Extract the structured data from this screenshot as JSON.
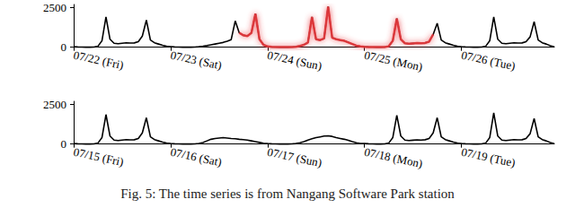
{
  "caption": "Fig. 5: The time series is from Nangang Software Park station",
  "chart_data": [
    {
      "type": "line",
      "marker": "none",
      "grid": false,
      "ylim": [
        -130,
        2680
      ],
      "yticks": [
        0,
        2500
      ],
      "categories": [
        "07/22 (Fri)",
        null,
        null,
        null,
        null,
        null,
        null,
        null,
        null,
        null,
        null,
        null,
        null,
        null,
        null,
        null,
        null,
        null,
        null,
        null,
        null,
        null,
        null,
        null,
        "07/23 (Sat)",
        null,
        null,
        null,
        null,
        null,
        null,
        null,
        null,
        null,
        null,
        null,
        null,
        null,
        null,
        null,
        null,
        null,
        null,
        null,
        null,
        null,
        null,
        null,
        "07/24 (Sun)",
        null,
        null,
        null,
        null,
        null,
        null,
        null,
        null,
        null,
        null,
        null,
        null,
        null,
        null,
        null,
        null,
        null,
        null,
        null,
        null,
        null,
        null,
        null,
        "07/25 (Mon)",
        null,
        null,
        null,
        null,
        null,
        null,
        null,
        null,
        null,
        null,
        null,
        null,
        null,
        null,
        null,
        null,
        null,
        null,
        null,
        null,
        null,
        null,
        null,
        "07/26 (Tue)",
        null,
        null,
        null,
        null,
        null,
        null,
        null,
        null,
        null,
        null,
        null,
        null,
        null,
        null,
        null,
        null,
        null,
        null,
        null,
        null,
        null,
        null,
        null
      ],
      "series": [
        {
          "color": "#000000",
          "values": [
            30,
            15,
            10,
            5,
            5,
            10,
            60,
            400,
            1900,
            500,
            250,
            220,
            250,
            280,
            260,
            270,
            350,
            700,
            1700,
            450,
            280,
            200,
            120,
            60,
            40,
            20,
            10,
            5,
            5,
            5,
            10,
            30,
            60,
            100,
            150,
            200,
            250,
            300,
            380,
            480,
            1650,
            900,
            750,
            700,
            900,
            2100,
            500,
            150,
            50,
            20,
            10,
            5,
            5,
            5,
            10,
            30,
            80,
            150,
            300,
            1900,
            500,
            450,
            550,
            2550,
            600,
            500,
            450,
            400,
            300,
            200,
            100,
            50,
            30,
            15,
            10,
            5,
            5,
            10,
            60,
            400,
            1800,
            500,
            250,
            220,
            240,
            260,
            250,
            270,
            350,
            800,
            1500,
            450,
            280,
            200,
            120,
            60,
            30,
            15,
            10,
            5,
            5,
            10,
            60,
            400,
            1900,
            500,
            250,
            220,
            250,
            280,
            260,
            270,
            350,
            650,
            1600,
            450,
            280,
            200,
            100,
            20
          ]
        },
        {
          "color": "#e8383d",
          "values": [
            null,
            null,
            null,
            null,
            null,
            null,
            null,
            null,
            null,
            null,
            null,
            null,
            null,
            null,
            null,
            null,
            null,
            null,
            null,
            null,
            null,
            null,
            null,
            null,
            null,
            null,
            null,
            null,
            null,
            null,
            null,
            null,
            null,
            null,
            null,
            null,
            null,
            null,
            null,
            null,
            null,
            900,
            750,
            700,
            900,
            2100,
            500,
            150,
            50,
            20,
            10,
            5,
            5,
            5,
            10,
            30,
            80,
            150,
            300,
            1900,
            500,
            450,
            550,
            2550,
            600,
            500,
            450,
            400,
            300,
            200,
            100,
            50,
            30,
            15,
            10,
            5,
            5,
            10,
            60,
            400,
            1800,
            500,
            250,
            220,
            240,
            260,
            250,
            270,
            350,
            800,
            null,
            null,
            null,
            null,
            null,
            null,
            null,
            null,
            null,
            null,
            null,
            null,
            null,
            null,
            null,
            null,
            null,
            null,
            null,
            null,
            null,
            null,
            null,
            null,
            null,
            null,
            null,
            null,
            null,
            null
          ]
        }
      ]
    },
    {
      "type": "line",
      "marker": "none",
      "grid": false,
      "ylim": [
        -130,
        2680
      ],
      "yticks": [
        0,
        2500
      ],
      "categories": [
        "07/15 (Fri)",
        null,
        null,
        null,
        null,
        null,
        null,
        null,
        null,
        null,
        null,
        null,
        null,
        null,
        null,
        null,
        null,
        null,
        null,
        null,
        null,
        null,
        null,
        null,
        "07/16 (Sat)",
        null,
        null,
        null,
        null,
        null,
        null,
        null,
        null,
        null,
        null,
        null,
        null,
        null,
        null,
        null,
        null,
        null,
        null,
        null,
        null,
        null,
        null,
        null,
        "07/17 (Sun)",
        null,
        null,
        null,
        null,
        null,
        null,
        null,
        null,
        null,
        null,
        null,
        null,
        null,
        null,
        null,
        null,
        null,
        null,
        null,
        null,
        null,
        null,
        null,
        "07/18 (Mon)",
        null,
        null,
        null,
        null,
        null,
        null,
        null,
        null,
        null,
        null,
        null,
        null,
        null,
        null,
        null,
        null,
        null,
        null,
        null,
        null,
        null,
        null,
        null,
        "07/19 (Tue)",
        null,
        null,
        null,
        null,
        null,
        null,
        null,
        null,
        null,
        null,
        null,
        null,
        null,
        null,
        null,
        null,
        null,
        null,
        null,
        null,
        null,
        null,
        null
      ],
      "series": [
        {
          "color": "#000000",
          "values": [
            30,
            15,
            10,
            5,
            5,
            10,
            60,
            400,
            1850,
            500,
            250,
            220,
            250,
            280,
            260,
            270,
            350,
            700,
            1650,
            450,
            280,
            200,
            120,
            60,
            30,
            15,
            8,
            5,
            5,
            5,
            10,
            40,
            100,
            200,
            300,
            350,
            380,
            400,
            380,
            350,
            330,
            300,
            280,
            250,
            200,
            150,
            100,
            50,
            30,
            15,
            8,
            5,
            5,
            5,
            10,
            30,
            80,
            150,
            250,
            330,
            400,
            450,
            500,
            520,
            480,
            400,
            350,
            300,
            230,
            150,
            80,
            40,
            30,
            15,
            10,
            5,
            5,
            10,
            60,
            400,
            1800,
            500,
            250,
            220,
            240,
            260,
            250,
            270,
            350,
            700,
            1650,
            450,
            280,
            200,
            120,
            60,
            30,
            15,
            10,
            5,
            5,
            10,
            60,
            400,
            1950,
            500,
            250,
            220,
            250,
            280,
            260,
            270,
            350,
            650,
            1600,
            450,
            280,
            200,
            100,
            20
          ]
        }
      ]
    }
  ]
}
